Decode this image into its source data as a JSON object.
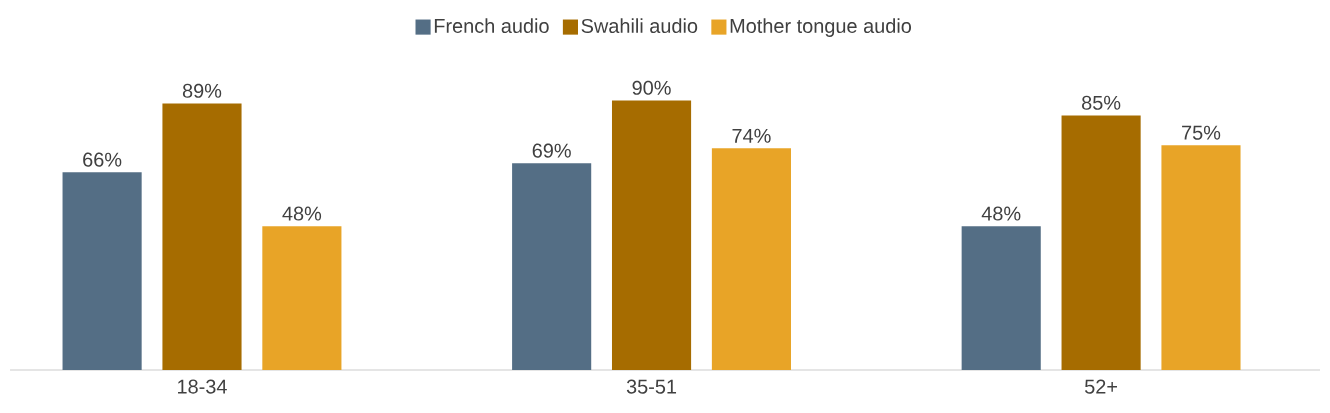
{
  "chart_data": {
    "type": "bar",
    "categories": [
      "18-34",
      "35-51",
      "52+"
    ],
    "series": [
      {
        "name": "French audio",
        "color": "#546e85",
        "values": [
          66,
          69,
          48
        ],
        "value_labels": [
          "66%",
          "69%",
          "48%"
        ]
      },
      {
        "name": "Swahili audio",
        "color": "#a66c00",
        "values": [
          89,
          90,
          85
        ],
        "value_labels": [
          "89%",
          "90%",
          "85%"
        ]
      },
      {
        "name": "Mother tongue audio",
        "color": "#e8a427",
        "values": [
          48,
          74,
          75
        ],
        "value_labels": [
          "48%",
          "74%",
          "75%"
        ]
      }
    ],
    "legend": "top"
  }
}
